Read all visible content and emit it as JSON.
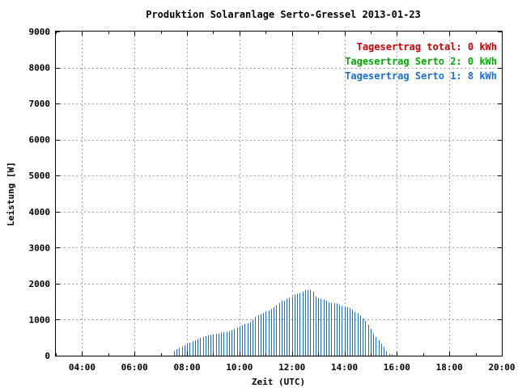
{
  "chart_data": {
    "type": "bar",
    "title": "Produktion Solaranlage Serto-Gressel 2013-01-23",
    "xlabel": "Zeit (UTC)",
    "ylabel": "Leistung [W]",
    "xlim": [
      3.0,
      20.0
    ],
    "ylim": [
      0,
      9000
    ],
    "x_ticks": [
      {
        "value": 4,
        "label": "04:00"
      },
      {
        "value": 6,
        "label": "06:00"
      },
      {
        "value": 8,
        "label": "08:00"
      },
      {
        "value": 10,
        "label": "10:00"
      },
      {
        "value": 12,
        "label": "12:00"
      },
      {
        "value": 14,
        "label": "14:00"
      },
      {
        "value": 16,
        "label": "16:00"
      },
      {
        "value": 18,
        "label": "18:00"
      },
      {
        "value": 20,
        "label": "20:00"
      }
    ],
    "y_ticks": [
      {
        "value": 0,
        "label": "0"
      },
      {
        "value": 1000,
        "label": "1000"
      },
      {
        "value": 2000,
        "label": "2000"
      },
      {
        "value": 3000,
        "label": "3000"
      },
      {
        "value": 4000,
        "label": "4000"
      },
      {
        "value": 5000,
        "label": "5000"
      },
      {
        "value": 6000,
        "label": "6000"
      },
      {
        "value": 7000,
        "label": "7000"
      },
      {
        "value": 8000,
        "label": "8000"
      },
      {
        "value": 9000,
        "label": "9000"
      }
    ],
    "grid": true,
    "legend_position": "top-right",
    "legend": [
      {
        "label": "Tagesertrag total: 0 kWh",
        "color": "#cc0000"
      },
      {
        "label": "Tagesertrag Serto 2: 0 kWh",
        "color": "#00aa00"
      },
      {
        "label": "Tagesertrag Serto 1: 8 kWh",
        "color": "#1a6fd6"
      }
    ],
    "series": [
      {
        "color": "#1a6fd6",
        "x": [
          7.5,
          7.6,
          7.7,
          7.8,
          7.9,
          8.0,
          8.1,
          8.2,
          8.3,
          8.4,
          8.5,
          8.6,
          8.7,
          8.8,
          8.9,
          9.0,
          9.1,
          9.2,
          9.3,
          9.4,
          9.5,
          9.6,
          9.7,
          9.8,
          9.9,
          10.0,
          10.1,
          10.2,
          10.3,
          10.4,
          10.5,
          10.6,
          10.7,
          10.8,
          10.9,
          11.0,
          11.1,
          11.2,
          11.3,
          11.4,
          11.5,
          11.6,
          11.7,
          11.8,
          11.9,
          12.0,
          12.1,
          12.2,
          12.3,
          12.4,
          12.5,
          12.6,
          12.7,
          12.8,
          12.9,
          13.0,
          13.1,
          13.2,
          13.3,
          13.4,
          13.5,
          13.6,
          13.7,
          13.8,
          13.9,
          14.0,
          14.1,
          14.2,
          14.3,
          14.4,
          14.5,
          14.6,
          14.7,
          14.8,
          14.9,
          15.0,
          15.1,
          15.2,
          15.3,
          15.4,
          15.5,
          15.6,
          15.7,
          15.8,
          15.9
        ],
        "values": [
          130,
          180,
          220,
          260,
          290,
          330,
          360,
          400,
          430,
          460,
          490,
          520,
          540,
          560,
          580,
          600,
          610,
          620,
          640,
          650,
          660,
          680,
          710,
          740,
          780,
          820,
          850,
          880,
          900,
          930,
          1000,
          1080,
          1120,
          1160,
          1190,
          1230,
          1250,
          1300,
          1340,
          1400,
          1460,
          1530,
          1520,
          1580,
          1610,
          1640,
          1700,
          1720,
          1740,
          1780,
          1820,
          1820,
          1830,
          1780,
          1640,
          1600,
          1580,
          1560,
          1520,
          1490,
          1470,
          1460,
          1450,
          1420,
          1380,
          1360,
          1350,
          1320,
          1280,
          1220,
          1180,
          1120,
          1040,
          960,
          860,
          740,
          620,
          520,
          430,
          330,
          250,
          120,
          60,
          30,
          10
        ]
      }
    ]
  }
}
